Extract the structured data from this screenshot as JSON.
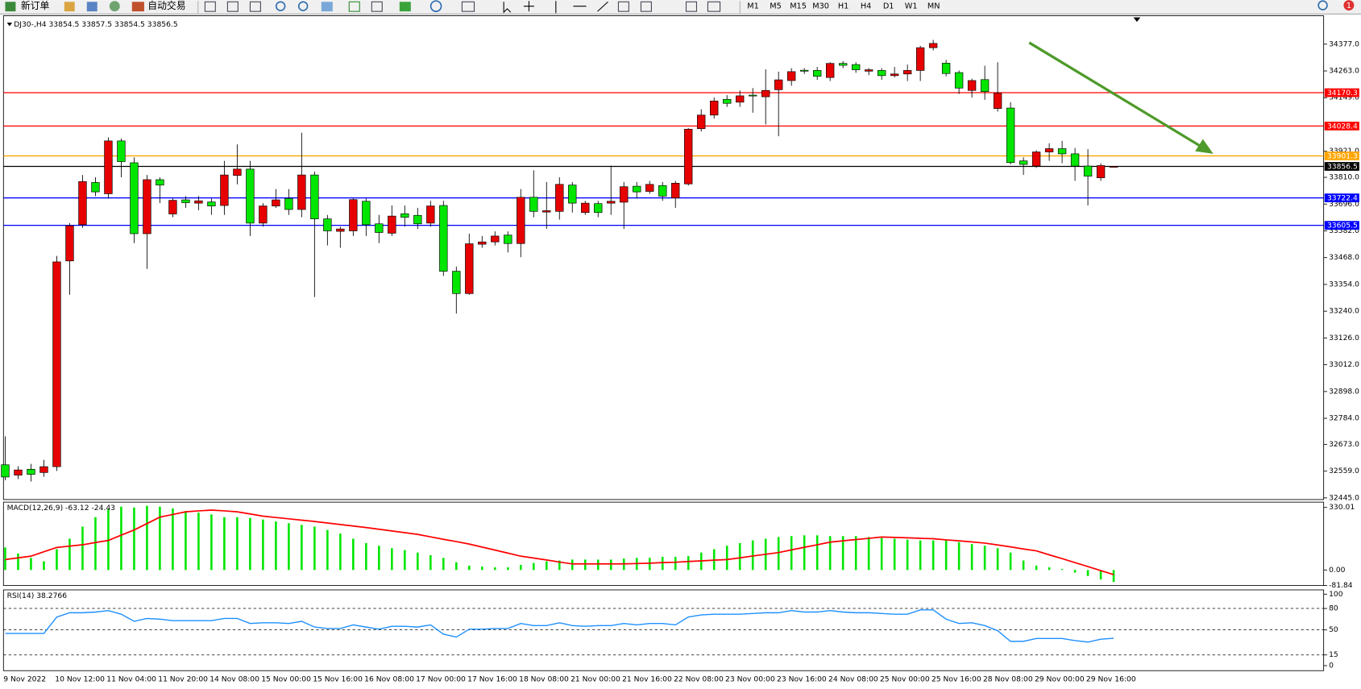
{
  "toolbar": {
    "new_order": "新订单",
    "auto_trading": "自动交易",
    "timeframes": [
      "M1",
      "M5",
      "M15",
      "M30",
      "H1",
      "H4",
      "D1",
      "W1",
      "MN"
    ],
    "notifications": "1"
  },
  "chart_data": [
    {
      "type": "candlestick",
      "title": "DJ30-,H4  33854.5 33857.5 33854.5 33856.5",
      "categories": [
        "9 Nov 2022",
        null,
        null,
        null,
        "10 Nov 12:00",
        null,
        null,
        null,
        "11 Nov 04:00",
        null,
        null,
        null,
        "11 Nov 20:00",
        null,
        null,
        null,
        "14 Nov 08:00",
        null,
        null,
        null,
        "15 Nov 00:00",
        null,
        null,
        null,
        "15 Nov 16:00",
        null,
        null,
        null,
        "16 Nov 08:00",
        null,
        null,
        null,
        "17 Nov 00:00",
        null,
        null,
        null,
        "17 Nov 16:00",
        null,
        null,
        null,
        "18 Nov 08:00",
        null,
        null,
        null,
        "21 Nov 00:00",
        null,
        null,
        null,
        "21 Nov 16:00",
        null,
        null,
        null,
        "22 Nov 08:00",
        null,
        null,
        null,
        "23 Nov 00:00",
        null,
        null,
        null,
        "23 Nov 16:00",
        null,
        null,
        null,
        "24 Nov 08:00",
        null,
        null,
        null,
        "25 Nov 00:00",
        null,
        null,
        null,
        "25 Nov 16:00",
        null,
        null,
        null,
        "28 Nov 08:00",
        null,
        null,
        null,
        "29 Nov 00:00",
        null,
        null,
        null,
        "29 Nov 16:00",
        null,
        null
      ],
      "open": [
        32586,
        32542,
        32567,
        32553,
        32578,
        33454,
        33608,
        33788,
        33740,
        33965,
        33872,
        33570,
        33800,
        33654,
        33714,
        33700,
        33705,
        33690,
        33818,
        33845,
        33615,
        33688,
        33720,
        33673,
        33820,
        33633,
        33580,
        33582,
        33708,
        33612,
        33572,
        33655,
        33648,
        33615,
        33690,
        33410,
        33315,
        33525,
        33535,
        33564,
        33528,
        33725,
        33662,
        33665,
        33777,
        33660,
        33698,
        33700,
        33704,
        33772,
        33750,
        33775,
        33722,
        33782,
        34017,
        34075,
        34142,
        34130,
        34160,
        34153,
        34183,
        34222,
        34266,
        34265,
        34235,
        34295,
        34290,
        34262,
        34265,
        34243,
        34250,
        34265,
        34362,
        34296,
        34256,
        34180,
        34226,
        34103,
        34105,
        33880,
        33858,
        33918,
        33932,
        33910,
        33858,
        33808,
        33854.5
      ],
      "high": [
        32707,
        32580,
        32590,
        32607,
        33475,
        33615,
        33820,
        33810,
        33980,
        33975,
        33895,
        33820,
        33810,
        33720,
        33730,
        33730,
        33720,
        33880,
        33950,
        33880,
        33700,
        33760,
        33760,
        34000,
        33835,
        33650,
        33600,
        33720,
        33720,
        33650,
        33690,
        33690,
        33680,
        33710,
        33710,
        33430,
        33570,
        33560,
        33580,
        33580,
        33760,
        33840,
        33790,
        33810,
        33790,
        33710,
        33710,
        33860,
        33790,
        33790,
        33795,
        33790,
        33795,
        34020,
        34100,
        34150,
        34160,
        34180,
        34190,
        34270,
        34260,
        34275,
        34275,
        34280,
        34300,
        34305,
        34300,
        34275,
        34275,
        34280,
        34290,
        34370,
        34395,
        34310,
        34265,
        34230,
        34285,
        34300,
        34130,
        33895,
        33925,
        33955,
        33965,
        33935,
        33930,
        33870,
        33857.5
      ],
      "low": [
        32520,
        32525,
        32515,
        32535,
        32560,
        33310,
        33595,
        33730,
        33720,
        33810,
        33530,
        33420,
        33700,
        33640,
        33680,
        33670,
        33650,
        33650,
        33780,
        33560,
        33600,
        33680,
        33650,
        33640,
        33300,
        33520,
        33510,
        33560,
        33560,
        33530,
        33560,
        33600,
        33590,
        33600,
        33390,
        33230,
        33310,
        33510,
        33520,
        33490,
        33470,
        33640,
        33590,
        33630,
        33660,
        33650,
        33640,
        33650,
        33590,
        33720,
        33740,
        33710,
        33680,
        33775,
        34005,
        34060,
        34110,
        34110,
        34085,
        34035,
        33985,
        34200,
        34250,
        34225,
        34220,
        34275,
        34255,
        34245,
        34225,
        34235,
        34220,
        34220,
        34350,
        34240,
        34165,
        34150,
        34140,
        34090,
        33865,
        33820,
        33850,
        33880,
        33870,
        33795,
        33690,
        33795,
        33854.5
      ],
      "close": [
        32534,
        32564,
        32545,
        32578,
        33450,
        33604,
        33792,
        33748,
        33965,
        33877,
        33570,
        33800,
        33777,
        33712,
        33702,
        33710,
        33688,
        33820,
        33845,
        33615,
        33688,
        33714,
        33673,
        33820,
        33633,
        33582,
        33590,
        33715,
        33608,
        33575,
        33645,
        33640,
        33612,
        33688,
        33410,
        33315,
        33527,
        33535,
        33560,
        33528,
        33725,
        33665,
        33668,
        33780,
        33700,
        33700,
        33660,
        33708,
        33770,
        33748,
        33780,
        33730,
        33785,
        34015,
        34075,
        34135,
        34125,
        34157,
        34157,
        34180,
        34225,
        34260,
        34262,
        34240,
        34295,
        34287,
        34268,
        34268,
        34243,
        34250,
        34265,
        34362,
        34380,
        34252,
        34190,
        34222,
        34175,
        34168,
        33873,
        33865,
        33918,
        33932,
        33910,
        33858,
        33815,
        33860,
        33856.5
      ],
      "up_color": "#e60000",
      "down_color": "#00e600",
      "ylim": [
        32438,
        34498
      ],
      "yticks": [
        {
          "value": 34377,
          "label": "34377.0"
        },
        {
          "value": 34263,
          "label": "34263.0"
        },
        {
          "value": 34149,
          "label": "34149.0"
        },
        {
          "value": 33921,
          "label": "33921.0"
        },
        {
          "value": 33810,
          "label": "33810.0"
        },
        {
          "value": 33696,
          "label": "33696.0"
        },
        {
          "value": 33582,
          "label": "33582.0"
        },
        {
          "value": 33468,
          "label": "33468.0"
        },
        {
          "value": 33354,
          "label": "33354.0"
        },
        {
          "value": 33240,
          "label": "33240.0"
        },
        {
          "value": 33126,
          "label": "33126.0"
        },
        {
          "value": 33012,
          "label": "33012.0"
        },
        {
          "value": 32898,
          "label": "32898.0"
        },
        {
          "value": 32784,
          "label": "32784.0"
        },
        {
          "value": 32673,
          "label": "32673.0"
        },
        {
          "value": 32559,
          "label": "32559.0"
        },
        {
          "value": 32445,
          "label": "32445.0"
        }
      ],
      "levels": [
        {
          "value": 34170.3,
          "color": "#ff0000"
        },
        {
          "value": 34028.4,
          "color": "#ff0000"
        },
        {
          "value": 33901.3,
          "color": "#ffa500"
        },
        {
          "value": 33856.5,
          "color": "#000000"
        },
        {
          "value": 33722.4,
          "color": "#0000ff"
        },
        {
          "value": 33605.5,
          "color": "#0000ff"
        }
      ]
    },
    {
      "type": "macd",
      "title": "MACD(12,26,9) -63.12 -24.43",
      "histogram": [
        119,
        87,
        64,
        46,
        110,
        165,
        229,
        279,
        321,
        334,
        330,
        339,
        334,
        325,
        311,
        302,
        293,
        279,
        279,
        275,
        266,
        256,
        247,
        238,
        229,
        211,
        192,
        165,
        142,
        128,
        115,
        105,
        92,
        78,
        64,
        41,
        23,
        18,
        14,
        14,
        27,
        37,
        46,
        50,
        55,
        55,
        55,
        55,
        60,
        64,
        64,
        69,
        69,
        73,
        92,
        110,
        128,
        142,
        156,
        165,
        174,
        179,
        183,
        183,
        179,
        179,
        179,
        174,
        169,
        165,
        160,
        156,
        156,
        156,
        147,
        137,
        128,
        115,
        92,
        50,
        23,
        14,
        5,
        -14,
        -32,
        -50,
        -63.12
      ],
      "signal": [
        55,
        64,
        73,
        96,
        119,
        126,
        133,
        145,
        156,
        184,
        211,
        245,
        279,
        293,
        307,
        312,
        316,
        312,
        307,
        296,
        284,
        277,
        270,
        263,
        256,
        248,
        240,
        232,
        224,
        215,
        206,
        197,
        188,
        175,
        162,
        150,
        137,
        121,
        105,
        89,
        73,
        63,
        53,
        42,
        32,
        32,
        32,
        32,
        32,
        34,
        36,
        39,
        41,
        45,
        48,
        52,
        55,
        64,
        74,
        83,
        92,
        106,
        120,
        133,
        147,
        154,
        161,
        167,
        174,
        172,
        170,
        167,
        165,
        159,
        154,
        148,
        142,
        132,
        122,
        111,
        101,
        80,
        60,
        39,
        18,
        -3,
        -24.43
      ],
      "histogram_color": "#00e600",
      "signal_color": "#ff0000",
      "ylim": [
        -82,
        358
      ],
      "yticks": [
        330.01,
        {
          "value": 0,
          "label": "0.00"
        },
        -81.84
      ]
    },
    {
      "type": "line",
      "title": "RSI(14) 38.2766",
      "values": [
        45,
        45,
        45,
        45,
        68,
        74,
        74,
        75,
        77,
        72,
        62,
        66,
        65,
        63,
        63,
        63,
        63,
        66,
        66,
        59,
        60,
        60,
        59,
        62,
        54,
        52,
        52,
        57,
        54,
        51,
        55,
        55,
        54,
        57,
        44,
        40,
        51,
        51,
        52,
        52,
        59,
        56,
        56,
        60,
        56,
        55,
        56,
        56,
        59,
        57,
        59,
        59,
        57,
        68,
        71,
        72,
        72,
        72,
        73,
        74,
        74,
        77,
        75,
        75,
        77,
        75,
        74,
        74,
        73,
        72,
        72,
        78,
        78,
        65,
        59,
        60,
        56,
        49,
        34,
        34,
        38,
        38,
        38,
        35,
        33,
        37,
        38.2766
      ],
      "color": "#1e90ff",
      "ylim": [
        -7,
        106
      ],
      "yticks": [
        100,
        80,
        50,
        15,
        0
      ],
      "levels": [
        80,
        50,
        15
      ]
    }
  ]
}
